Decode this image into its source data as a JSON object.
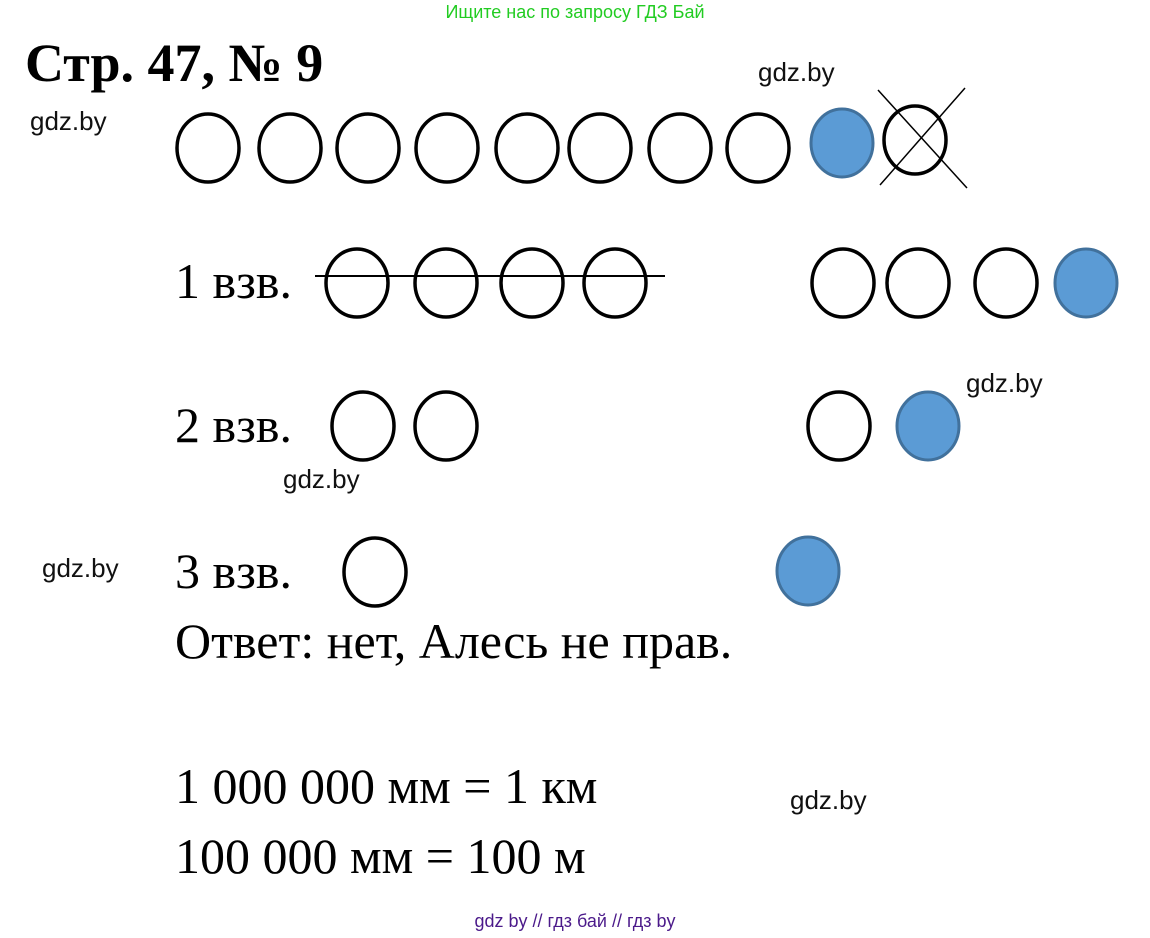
{
  "banner": {
    "text": "Ищите нас по запросу ГДЗ Бай",
    "color": "#22cc22"
  },
  "title": "Стр. 47, № 9",
  "steps": [
    {
      "label": "1 взв."
    },
    {
      "label": "2 взв."
    },
    {
      "label": "3 взв."
    }
  ],
  "answer": "Ответ: нет, Алесь не прав.",
  "equations": [
    "1 000 000 мм = 1 км",
    "100 000 мм = 100 м"
  ],
  "watermark": "gdz.by",
  "footer": {
    "text": "gdz by  //  гдз бай  //  гдз by",
    "color": "#4b1a8a"
  },
  "colors": {
    "highlight_circle": "#5b9bd5",
    "highlight_border": "#41719c"
  }
}
